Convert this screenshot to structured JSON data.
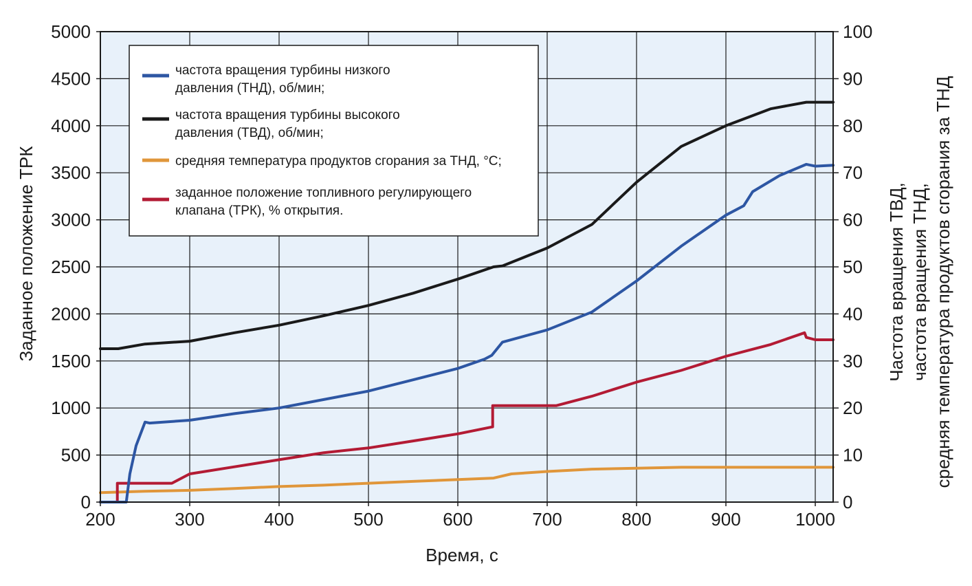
{
  "chart_data": {
    "type": "line",
    "xlabel": "Время, с",
    "ylabel_left": "Заданное положение ТРК",
    "ylabel_right": [
      "Частота вращения ТВД,",
      "частота вращения ТНД,",
      "средняя температура продуктов сгорания за ТНД"
    ],
    "xlim": [
      200,
      1020
    ],
    "ylim_left": [
      0,
      5000
    ],
    "ylim_right": [
      0,
      100
    ],
    "x_ticks": [
      200,
      300,
      400,
      500,
      600,
      700,
      800,
      900,
      1000
    ],
    "y_left_ticks": [
      0,
      500,
      1000,
      1500,
      2000,
      2500,
      3000,
      3500,
      4000,
      4500,
      5000
    ],
    "y_right_ticks": [
      0,
      10,
      20,
      30,
      40,
      50,
      60,
      70,
      80,
      90,
      100
    ],
    "grid": true,
    "legend_position": "top-left",
    "colors": {
      "background": "#e8f1fa",
      "grid": "#1a1a1a"
    },
    "series": [
      {
        "name": "частота вращения турбины низкого давления (ТНД), об/мин;",
        "color": "#2d56a3",
        "axis": "left",
        "x": [
          200,
          229,
          233,
          240,
          250,
          255,
          300,
          350,
          400,
          450,
          500,
          550,
          600,
          630,
          638,
          650,
          700,
          750,
          800,
          850,
          900,
          920,
          930,
          960,
          990,
          1000,
          1020
        ],
        "y": [
          0,
          0,
          300,
          600,
          850,
          840,
          870,
          940,
          1000,
          1090,
          1180,
          1300,
          1420,
          1520,
          1560,
          1700,
          1830,
          2020,
          2350,
          2720,
          3050,
          3150,
          3300,
          3470,
          3590,
          3570,
          3580
        ]
      },
      {
        "name": "частота вращения турбины высокого давления (ТВД), об/мин;",
        "color": "#1a1a1a",
        "axis": "left",
        "x": [
          200,
          220,
          250,
          300,
          350,
          400,
          450,
          500,
          550,
          600,
          640,
          650,
          700,
          750,
          800,
          850,
          900,
          950,
          990,
          1000,
          1020
        ],
        "y": [
          1630,
          1630,
          1680,
          1710,
          1800,
          1880,
          1980,
          2090,
          2220,
          2370,
          2500,
          2510,
          2700,
          2950,
          3400,
          3780,
          4000,
          4180,
          4250,
          4250,
          4250
        ]
      },
      {
        "name": "средняя температура продуктов сгорания за ТНД, °С;",
        "color": "#e0963a",
        "axis": "right",
        "x": [
          200,
          250,
          300,
          350,
          400,
          450,
          500,
          550,
          600,
          640,
          660,
          700,
          750,
          800,
          850,
          900,
          950,
          1020
        ],
        "y": [
          2,
          2.3,
          2.5,
          2.9,
          3.3,
          3.6,
          4.0,
          4.4,
          4.8,
          5.1,
          6.0,
          6.5,
          7.0,
          7.2,
          7.4,
          7.4,
          7.4,
          7.4
        ]
      },
      {
        "name": "заданное положение топливного регулирующего клапана (ТРК), % открытия.",
        "color": "#b31b34",
        "axis": "right",
        "x": [
          200,
          219,
          219,
          280,
          300,
          350,
          400,
          450,
          500,
          550,
          600,
          639,
          639,
          710,
          750,
          800,
          850,
          900,
          950,
          988,
          990,
          1000,
          1020
        ],
        "y": [
          0,
          0,
          4,
          4,
          6,
          7.5,
          9,
          10.5,
          11.5,
          13,
          14.5,
          16,
          20.5,
          20.5,
          22.5,
          25.5,
          28,
          31,
          33.5,
          36,
          35,
          34.5,
          34.5
        ]
      }
    ]
  }
}
